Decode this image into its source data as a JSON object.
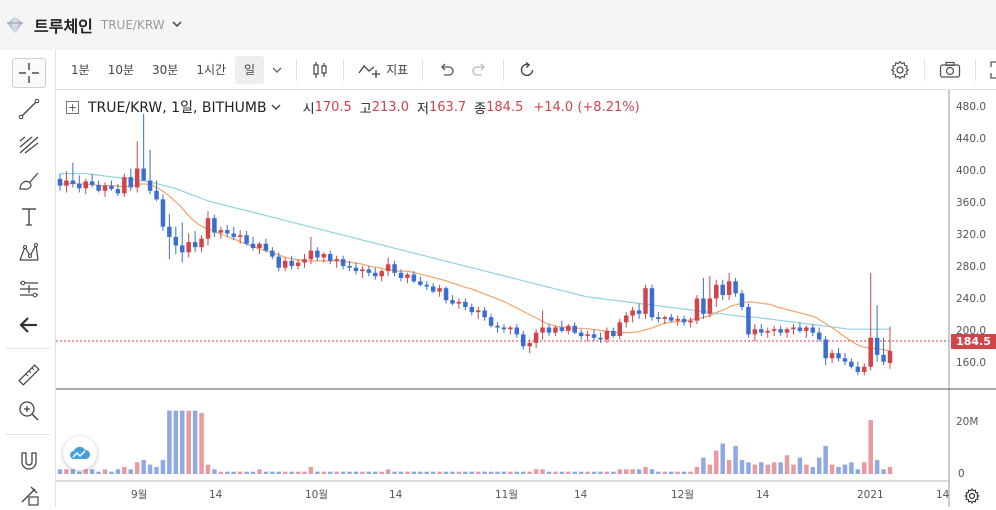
{
  "header": {
    "coin_name": "트루체인",
    "pair_code": "TRUE/KRW"
  },
  "toolbar": {
    "intervals": [
      "1분",
      "10분",
      "30분",
      "1시간",
      "일"
    ],
    "active_interval": "일",
    "indicator_label": "지표",
    "icons": [
      "chevron-down-icon",
      "candle-type-icon",
      "indicator-icon",
      "undo-icon",
      "redo-icon",
      "reset-icon",
      "settings-icon",
      "camera-icon",
      "fullscreen-icon"
    ]
  },
  "left_tools": [
    "crosshair-icon",
    "trend-line-icon",
    "fib-tool-icon",
    "brush-icon",
    "text-icon",
    "pattern-icon",
    "measure-icon",
    "back-arrow-icon",
    "ruler-icon",
    "zoom-in-icon",
    "magnet-icon",
    "lock-pen-icon"
  ],
  "legend": {
    "symbol": "TRUE/KRW, 1일, BITHUMB",
    "open_label": "시",
    "open": "170.5",
    "high_label": "고",
    "high": "213.0",
    "low_label": "저",
    "low": "163.7",
    "close_label": "종",
    "close": "184.5",
    "change": "+14.0 (+8.21%)"
  },
  "price_axis": [
    "480.0",
    "440.0",
    "400.0",
    "360.0",
    "320.0",
    "280.0",
    "240.0",
    "200.0",
    "160.0"
  ],
  "volume_axis": [
    "20M",
    "0"
  ],
  "time_axis": [
    "9월",
    "14",
    "10월",
    "14",
    "11월",
    "14",
    "12월",
    "14",
    "2021",
    "14"
  ],
  "current_price_tag": "184.5",
  "colors": {
    "up": "#d0444a",
    "down": "#3a6fd1",
    "ma_fast": "#f5a36a",
    "ma_slow": "#8fd3e3",
    "vol_up": "#e89aa0",
    "vol_down": "#8fa9e6"
  },
  "chart_data": {
    "type": "candlestick",
    "price_range": [
      140,
      490
    ],
    "volume_range_millions": [
      0,
      32
    ],
    "candles": [
      {
        "o": 386,
        "h": 392,
        "l": 372,
        "c": 378,
        "v": 2
      },
      {
        "o": 378,
        "h": 395,
        "l": 370,
        "c": 384,
        "v": 2
      },
      {
        "o": 384,
        "h": 405,
        "l": 376,
        "c": 380,
        "v": 2
      },
      {
        "o": 380,
        "h": 390,
        "l": 370,
        "c": 375,
        "v": 1
      },
      {
        "o": 375,
        "h": 386,
        "l": 368,
        "c": 383,
        "v": 2
      },
      {
        "o": 383,
        "h": 392,
        "l": 376,
        "c": 379,
        "v": 2
      },
      {
        "o": 379,
        "h": 384,
        "l": 370,
        "c": 372,
        "v": 1
      },
      {
        "o": 372,
        "h": 382,
        "l": 365,
        "c": 378,
        "v": 2
      },
      {
        "o": 378,
        "h": 384,
        "l": 372,
        "c": 374,
        "v": 1
      },
      {
        "o": 374,
        "h": 380,
        "l": 366,
        "c": 369,
        "v": 2
      },
      {
        "o": 369,
        "h": 392,
        "l": 365,
        "c": 388,
        "v": 3
      },
      {
        "o": 388,
        "h": 398,
        "l": 372,
        "c": 376,
        "v": 2
      },
      {
        "o": 376,
        "h": 430,
        "l": 370,
        "c": 398,
        "v": 5
      },
      {
        "o": 398,
        "h": 462,
        "l": 385,
        "c": 384,
        "v": 6
      },
      {
        "o": 384,
        "h": 420,
        "l": 368,
        "c": 372,
        "v": 4
      },
      {
        "o": 372,
        "h": 384,
        "l": 360,
        "c": 362,
        "v": 3
      },
      {
        "o": 362,
        "h": 368,
        "l": 325,
        "c": 330,
        "v": 6
      },
      {
        "o": 330,
        "h": 345,
        "l": 292,
        "c": 318,
        "v": 27
      },
      {
        "o": 318,
        "h": 330,
        "l": 298,
        "c": 308,
        "v": 27
      },
      {
        "o": 308,
        "h": 335,
        "l": 288,
        "c": 300,
        "v": 27
      },
      {
        "o": 300,
        "h": 322,
        "l": 294,
        "c": 312,
        "v": 27
      },
      {
        "o": 312,
        "h": 325,
        "l": 300,
        "c": 306,
        "v": 27
      },
      {
        "o": 306,
        "h": 320,
        "l": 300,
        "c": 316,
        "v": 26
      },
      {
        "o": 316,
        "h": 348,
        "l": 308,
        "c": 340,
        "v": 4
      },
      {
        "o": 340,
        "h": 344,
        "l": 318,
        "c": 323,
        "v": 2
      },
      {
        "o": 323,
        "h": 330,
        "l": 316,
        "c": 326,
        "v": 1
      },
      {
        "o": 326,
        "h": 332,
        "l": 318,
        "c": 322,
        "v": 1
      },
      {
        "o": 322,
        "h": 330,
        "l": 314,
        "c": 318,
        "v": 1
      },
      {
        "o": 318,
        "h": 326,
        "l": 310,
        "c": 320,
        "v": 1
      },
      {
        "o": 320,
        "h": 325,
        "l": 308,
        "c": 310,
        "v": 1
      },
      {
        "o": 310,
        "h": 318,
        "l": 302,
        "c": 305,
        "v": 1
      },
      {
        "o": 305,
        "h": 312,
        "l": 298,
        "c": 310,
        "v": 2
      },
      {
        "o": 310,
        "h": 316,
        "l": 300,
        "c": 302,
        "v": 1
      },
      {
        "o": 302,
        "h": 306,
        "l": 292,
        "c": 295,
        "v": 1
      },
      {
        "o": 295,
        "h": 300,
        "l": 278,
        "c": 282,
        "v": 1
      },
      {
        "o": 282,
        "h": 294,
        "l": 278,
        "c": 290,
        "v": 1
      },
      {
        "o": 290,
        "h": 296,
        "l": 280,
        "c": 284,
        "v": 1
      },
      {
        "o": 284,
        "h": 292,
        "l": 280,
        "c": 288,
        "v": 1
      },
      {
        "o": 288,
        "h": 298,
        "l": 282,
        "c": 292,
        "v": 1
      },
      {
        "o": 292,
        "h": 318,
        "l": 286,
        "c": 302,
        "v": 3
      },
      {
        "o": 302,
        "h": 306,
        "l": 290,
        "c": 294,
        "v": 1
      },
      {
        "o": 294,
        "h": 300,
        "l": 288,
        "c": 298,
        "v": 1
      },
      {
        "o": 298,
        "h": 302,
        "l": 286,
        "c": 290,
        "v": 1
      },
      {
        "o": 290,
        "h": 296,
        "l": 282,
        "c": 292,
        "v": 1
      },
      {
        "o": 292,
        "h": 296,
        "l": 280,
        "c": 284,
        "v": 1
      },
      {
        "o": 284,
        "h": 290,
        "l": 278,
        "c": 282,
        "v": 1
      },
      {
        "o": 282,
        "h": 288,
        "l": 274,
        "c": 278,
        "v": 1
      },
      {
        "o": 278,
        "h": 284,
        "l": 270,
        "c": 280,
        "v": 1
      },
      {
        "o": 280,
        "h": 284,
        "l": 272,
        "c": 276,
        "v": 1
      },
      {
        "o": 276,
        "h": 282,
        "l": 268,
        "c": 272,
        "v": 1
      },
      {
        "o": 272,
        "h": 280,
        "l": 266,
        "c": 278,
        "v": 1
      },
      {
        "o": 278,
        "h": 294,
        "l": 272,
        "c": 286,
        "v": 2
      },
      {
        "o": 286,
        "h": 290,
        "l": 272,
        "c": 276,
        "v": 1
      },
      {
        "o": 276,
        "h": 280,
        "l": 266,
        "c": 270,
        "v": 1
      },
      {
        "o": 270,
        "h": 276,
        "l": 264,
        "c": 274,
        "v": 1
      },
      {
        "o": 274,
        "h": 278,
        "l": 264,
        "c": 266,
        "v": 1
      },
      {
        "o": 266,
        "h": 272,
        "l": 260,
        "c": 262,
        "v": 1
      },
      {
        "o": 262,
        "h": 266,
        "l": 256,
        "c": 260,
        "v": 1
      },
      {
        "o": 260,
        "h": 264,
        "l": 252,
        "c": 254,
        "v": 1
      },
      {
        "o": 254,
        "h": 262,
        "l": 248,
        "c": 258,
        "v": 1
      },
      {
        "o": 258,
        "h": 260,
        "l": 240,
        "c": 244,
        "v": 1
      },
      {
        "o": 244,
        "h": 250,
        "l": 238,
        "c": 240,
        "v": 1
      },
      {
        "o": 240,
        "h": 246,
        "l": 234,
        "c": 242,
        "v": 1
      },
      {
        "o": 242,
        "h": 246,
        "l": 232,
        "c": 236,
        "v": 1
      },
      {
        "o": 236,
        "h": 240,
        "l": 226,
        "c": 230,
        "v": 1
      },
      {
        "o": 230,
        "h": 236,
        "l": 222,
        "c": 232,
        "v": 1
      },
      {
        "o": 232,
        "h": 236,
        "l": 220,
        "c": 224,
        "v": 1
      },
      {
        "o": 224,
        "h": 228,
        "l": 212,
        "c": 214,
        "v": 1
      },
      {
        "o": 214,
        "h": 218,
        "l": 206,
        "c": 212,
        "v": 1
      },
      {
        "o": 212,
        "h": 216,
        "l": 206,
        "c": 210,
        "v": 1
      },
      {
        "o": 210,
        "h": 214,
        "l": 204,
        "c": 212,
        "v": 1
      },
      {
        "o": 212,
        "h": 216,
        "l": 200,
        "c": 204,
        "v": 1
      },
      {
        "o": 204,
        "h": 208,
        "l": 186,
        "c": 190,
        "v": 1
      },
      {
        "o": 190,
        "h": 198,
        "l": 182,
        "c": 194,
        "v": 1
      },
      {
        "o": 194,
        "h": 210,
        "l": 188,
        "c": 206,
        "v": 2
      },
      {
        "o": 206,
        "h": 232,
        "l": 198,
        "c": 212,
        "v": 2
      },
      {
        "o": 212,
        "h": 216,
        "l": 202,
        "c": 206,
        "v": 1
      },
      {
        "o": 206,
        "h": 214,
        "l": 202,
        "c": 212,
        "v": 1
      },
      {
        "o": 212,
        "h": 220,
        "l": 206,
        "c": 208,
        "v": 1
      },
      {
        "o": 208,
        "h": 216,
        "l": 204,
        "c": 214,
        "v": 1
      },
      {
        "o": 214,
        "h": 218,
        "l": 204,
        "c": 206,
        "v": 1
      },
      {
        "o": 206,
        "h": 210,
        "l": 198,
        "c": 202,
        "v": 1
      },
      {
        "o": 202,
        "h": 208,
        "l": 196,
        "c": 204,
        "v": 1
      },
      {
        "o": 204,
        "h": 210,
        "l": 196,
        "c": 200,
        "v": 1
      },
      {
        "o": 200,
        "h": 206,
        "l": 194,
        "c": 198,
        "v": 1
      },
      {
        "o": 198,
        "h": 212,
        "l": 194,
        "c": 208,
        "v": 1
      },
      {
        "o": 208,
        "h": 212,
        "l": 200,
        "c": 202,
        "v": 1
      },
      {
        "o": 202,
        "h": 222,
        "l": 198,
        "c": 218,
        "v": 2
      },
      {
        "o": 218,
        "h": 230,
        "l": 212,
        "c": 226,
        "v": 2
      },
      {
        "o": 226,
        "h": 236,
        "l": 218,
        "c": 232,
        "v": 2
      },
      {
        "o": 232,
        "h": 240,
        "l": 222,
        "c": 228,
        "v": 2
      },
      {
        "o": 228,
        "h": 262,
        "l": 222,
        "c": 258,
        "v": 3
      },
      {
        "o": 258,
        "h": 262,
        "l": 220,
        "c": 224,
        "v": 2
      },
      {
        "o": 224,
        "h": 230,
        "l": 218,
        "c": 222,
        "v": 1
      },
      {
        "o": 222,
        "h": 226,
        "l": 216,
        "c": 224,
        "v": 1
      },
      {
        "o": 224,
        "h": 228,
        "l": 218,
        "c": 220,
        "v": 1
      },
      {
        "o": 220,
        "h": 226,
        "l": 214,
        "c": 222,
        "v": 1
      },
      {
        "o": 222,
        "h": 226,
        "l": 214,
        "c": 218,
        "v": 1
      },
      {
        "o": 218,
        "h": 224,
        "l": 212,
        "c": 220,
        "v": 1
      },
      {
        "o": 220,
        "h": 250,
        "l": 216,
        "c": 246,
        "v": 3
      },
      {
        "o": 246,
        "h": 270,
        "l": 222,
        "c": 228,
        "v": 7
      },
      {
        "o": 228,
        "h": 272,
        "l": 224,
        "c": 246,
        "v": 4
      },
      {
        "o": 246,
        "h": 268,
        "l": 236,
        "c": 262,
        "v": 10
      },
      {
        "o": 262,
        "h": 268,
        "l": 244,
        "c": 250,
        "v": 13
      },
      {
        "o": 250,
        "h": 276,
        "l": 244,
        "c": 266,
        "v": 6
      },
      {
        "o": 266,
        "h": 270,
        "l": 248,
        "c": 252,
        "v": 12
      },
      {
        "o": 252,
        "h": 256,
        "l": 232,
        "c": 236,
        "v": 6
      },
      {
        "o": 236,
        "h": 240,
        "l": 200,
        "c": 204,
        "v": 5
      },
      {
        "o": 204,
        "h": 216,
        "l": 196,
        "c": 210,
        "v": 4
      },
      {
        "o": 210,
        "h": 216,
        "l": 202,
        "c": 206,
        "v": 5
      },
      {
        "o": 206,
        "h": 212,
        "l": 200,
        "c": 208,
        "v": 4
      },
      {
        "o": 208,
        "h": 214,
        "l": 202,
        "c": 210,
        "v": 5
      },
      {
        "o": 210,
        "h": 214,
        "l": 202,
        "c": 206,
        "v": 5
      },
      {
        "o": 206,
        "h": 212,
        "l": 200,
        "c": 210,
        "v": 8
      },
      {
        "o": 210,
        "h": 216,
        "l": 204,
        "c": 212,
        "v": 4
      },
      {
        "o": 212,
        "h": 218,
        "l": 206,
        "c": 208,
        "v": 7
      },
      {
        "o": 208,
        "h": 214,
        "l": 200,
        "c": 212,
        "v": 4
      },
      {
        "o": 212,
        "h": 216,
        "l": 202,
        "c": 206,
        "v": 3
      },
      {
        "o": 206,
        "h": 212,
        "l": 196,
        "c": 198,
        "v": 7
      },
      {
        "o": 198,
        "h": 202,
        "l": 168,
        "c": 176,
        "v": 12
      },
      {
        "o": 176,
        "h": 186,
        "l": 170,
        "c": 182,
        "v": 4
      },
      {
        "o": 182,
        "h": 188,
        "l": 172,
        "c": 176,
        "v": 3
      },
      {
        "o": 176,
        "h": 182,
        "l": 168,
        "c": 172,
        "v": 4
      },
      {
        "o": 172,
        "h": 176,
        "l": 164,
        "c": 166,
        "v": 5
      },
      {
        "o": 166,
        "h": 172,
        "l": 156,
        "c": 160,
        "v": 2
      },
      {
        "o": 160,
        "h": 170,
        "l": 156,
        "c": 166,
        "v": 5
      },
      {
        "o": 166,
        "h": 276,
        "l": 162,
        "c": 200,
        "v": 23
      },
      {
        "o": 200,
        "h": 238,
        "l": 172,
        "c": 180,
        "v": 6
      },
      {
        "o": 180,
        "h": 200,
        "l": 168,
        "c": 172,
        "v": 2
      },
      {
        "o": 170.5,
        "h": 213,
        "l": 163.7,
        "c": 184.5,
        "v": 3
      }
    ],
    "ma_fast": [
      380,
      380,
      381,
      380,
      380,
      379,
      378,
      378,
      378,
      377,
      377,
      378,
      380,
      380,
      378,
      374,
      369,
      362,
      355,
      346,
      338,
      332,
      328,
      326,
      322,
      319,
      316,
      313,
      310,
      307,
      304,
      302,
      299,
      297,
      294,
      292,
      291,
      290,
      290,
      290,
      290,
      290,
      290,
      289,
      288,
      287,
      285,
      283,
      282,
      280,
      279,
      278,
      278,
      277,
      275,
      273,
      271,
      269,
      267,
      264,
      262,
      259,
      257,
      254,
      251,
      248,
      245,
      242,
      238,
      234,
      230,
      226,
      222,
      218,
      215,
      213,
      212,
      211,
      211,
      211,
      210,
      209,
      208,
      207,
      206,
      206,
      206,
      207,
      209,
      211,
      214,
      217,
      218,
      219,
      220,
      221,
      222,
      224,
      226,
      230,
      233,
      237,
      239,
      241,
      242,
      241,
      240,
      239,
      236,
      234,
      232,
      230,
      228,
      226,
      223,
      218,
      213,
      208,
      202,
      197,
      192,
      189,
      188,
      187,
      186,
      185
    ],
    "ma_slow": [
      392,
      392,
      392,
      392,
      392,
      391,
      390,
      389,
      388,
      387,
      386,
      385,
      384,
      383,
      381,
      379,
      377,
      375,
      372,
      369,
      366,
      363,
      360,
      358,
      356,
      354,
      352,
      350,
      348,
      346,
      344,
      342,
      340,
      338,
      336,
      334,
      332,
      330,
      328,
      326,
      324,
      322,
      320,
      318,
      316,
      314,
      312,
      310,
      308,
      306,
      304,
      302,
      300,
      298,
      296,
      294,
      292,
      290,
      288,
      286,
      284,
      282,
      280,
      278,
      276,
      274,
      272,
      270,
      268,
      266,
      264,
      262,
      260,
      258,
      256,
      254,
      252,
      250,
      248,
      247,
      246,
      245,
      244,
      243,
      242,
      241,
      240,
      239,
      238,
      237,
      236,
      235,
      234,
      233,
      232,
      231,
      230,
      229,
      228,
      227,
      226,
      225,
      224,
      224,
      223,
      222,
      221,
      220,
      219,
      218,
      217,
      216,
      215,
      214,
      213,
      212,
      211,
      210,
      210,
      210,
      210,
      210,
      210,
      210
    ]
  }
}
